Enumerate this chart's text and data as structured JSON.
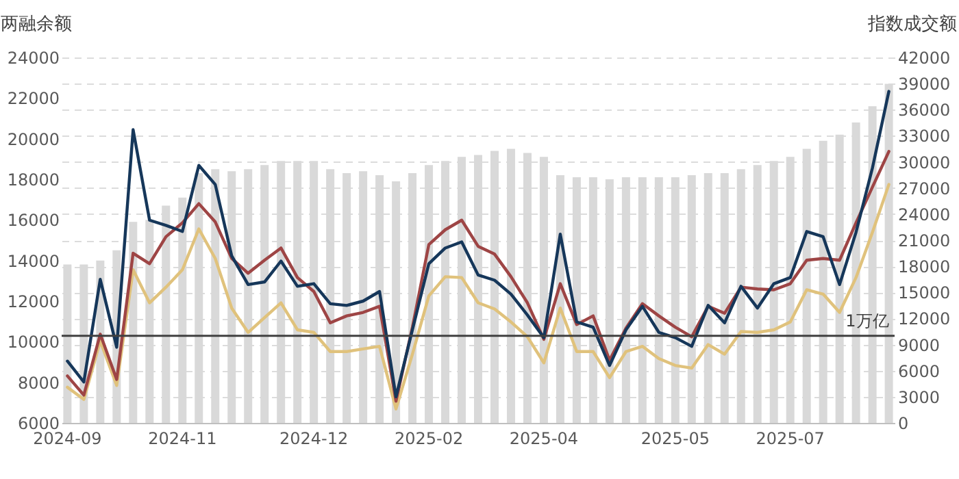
{
  "chart_data": {
    "type": "bar",
    "ylabel": "两融余额",
    "y2label": "指数成交额",
    "categories": [
      "2024-09",
      null,
      null,
      null,
      null,
      null,
      null,
      "2024-11",
      null,
      null,
      null,
      null,
      null,
      null,
      null,
      "2024-12",
      null,
      null,
      null,
      null,
      null,
      null,
      "2025-02",
      null,
      null,
      null,
      null,
      null,
      null,
      "2025-04",
      null,
      null,
      null,
      null,
      null,
      null,
      null,
      "2025-05",
      null,
      null,
      null,
      null,
      null,
      null,
      "2025-07",
      null,
      null,
      null,
      null,
      null,
      null
    ],
    "series": [
      {
        "color": "#d9d9d9",
        "values": [
          13800,
          13800,
          14000,
          14500,
          15900,
          16000,
          16700,
          17100,
          18300,
          18500,
          18400,
          18500,
          18700,
          18900,
          18900,
          18900,
          18500,
          18300,
          18400,
          18200,
          17900,
          18300,
          18700,
          18900,
          19100,
          19200,
          19400,
          19500,
          19300,
          19100,
          18200,
          18100,
          18100,
          18000,
          18100,
          18100,
          18100,
          18100,
          18200,
          18300,
          18300,
          18500,
          18700,
          18900,
          19100,
          19500,
          19900,
          20200,
          20800,
          21600,
          22700
        ]
      },
      {
        "type": "line",
        "axis": "y2",
        "color": "#e0c27c",
        "values": [
          4100,
          2700,
          9400,
          4300,
          17600,
          13800,
          15600,
          17600,
          22300,
          18900,
          13200,
          10400,
          12100,
          13800,
          10700,
          10400,
          8200,
          8200,
          8500,
          8800,
          1600,
          7900,
          14600,
          16800,
          16700,
          13800,
          13100,
          11600,
          9900,
          6900,
          13200,
          8200,
          8200,
          5200,
          8200,
          8800,
          7400,
          6600,
          6300,
          9000,
          7900,
          10500,
          10400,
          10700,
          11600,
          15300,
          14800,
          12700,
          16700,
          21900,
          27400
        ]
      },
      {
        "type": "line",
        "axis": "y2",
        "color": "#9e4545",
        "values": [
          5400,
          3200,
          10200,
          5000,
          19500,
          18300,
          21400,
          23000,
          25200,
          23100,
          18900,
          17200,
          18700,
          20100,
          16700,
          15100,
          11500,
          12300,
          12700,
          13400,
          2500,
          11000,
          20500,
          22200,
          23300,
          20300,
          19400,
          16800,
          13800,
          9600,
          16000,
          11300,
          12300,
          7200,
          10900,
          13700,
          12300,
          11000,
          9900,
          13400,
          12600,
          15600,
          15400,
          15300,
          16000,
          18700,
          18900,
          18700,
          23000,
          27100,
          31200
        ]
      },
      {
        "type": "line",
        "axis": "y2",
        "color": "#16375a",
        "values": [
          7100,
          4700,
          16500,
          8700,
          33700,
          23300,
          22700,
          22000,
          29600,
          27400,
          19200,
          15900,
          16200,
          18600,
          15700,
          16000,
          13700,
          13500,
          14000,
          15100,
          3000,
          10700,
          18300,
          20100,
          20800,
          17000,
          16400,
          14800,
          12400,
          9800,
          21700,
          11600,
          11000,
          6600,
          10700,
          13400,
          10400,
          9800,
          8800,
          13500,
          11500,
          15700,
          13200,
          16000,
          16700,
          22000,
          21400,
          15900,
          21900,
          29300,
          38100
        ]
      }
    ],
    "ylim": [
      6000,
      24000
    ],
    "yticks": [
      6000,
      8000,
      10000,
      12000,
      14000,
      16000,
      18000,
      20000,
      22000,
      24000
    ],
    "y2lim": [
      0,
      42000
    ],
    "y2ticks": [
      0,
      3000,
      6000,
      9000,
      12000,
      15000,
      18000,
      21000,
      24000,
      27000,
      30000,
      33000,
      36000,
      39000,
      42000
    ],
    "grid": true,
    "ref_lines": [
      {
        "axis": "y2",
        "value": 10000,
        "label": "1万亿",
        "color": "#404040"
      }
    ]
  }
}
